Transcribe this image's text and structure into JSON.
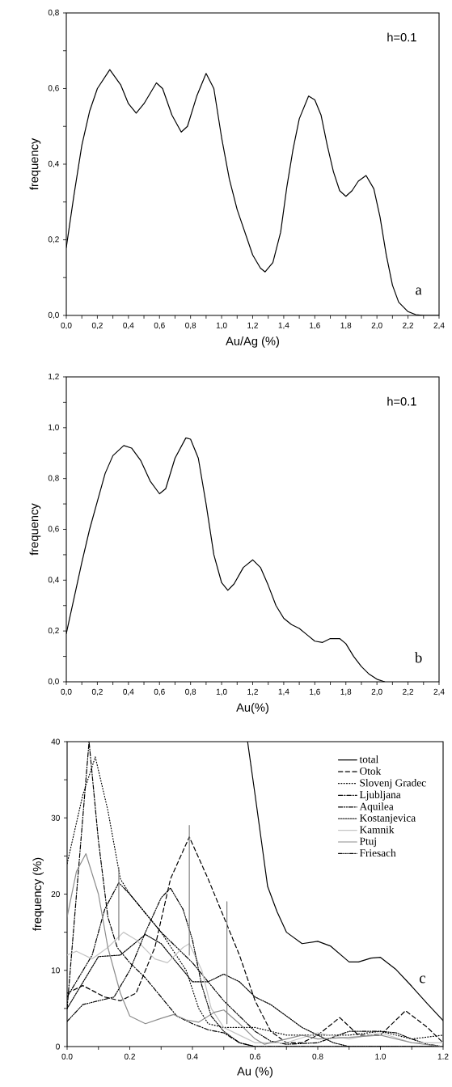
{
  "chart_data": [
    {
      "type": "line",
      "xlabel": "Au/Ag (%)",
      "ylabel": "frequency",
      "annotations": [
        "h=0.1",
        "a"
      ],
      "xlim": [
        0,
        2.4
      ],
      "ylim": [
        0,
        0.8
      ],
      "xticks": [
        {
          "value": 0,
          "label": "0,0"
        },
        {
          "value": 0.1,
          "label": null
        },
        {
          "value": 0.2,
          "label": "0,2"
        },
        {
          "value": 0.3,
          "label": null
        },
        {
          "value": 0.4,
          "label": "0,4"
        },
        {
          "value": 0.5,
          "label": null
        },
        {
          "value": 0.6,
          "label": "0,6"
        },
        {
          "value": 0.7,
          "label": null
        },
        {
          "value": 0.8,
          "label": "0,8"
        },
        {
          "value": 0.9,
          "label": null
        },
        {
          "value": 1.0,
          "label": "1,0"
        },
        {
          "value": 1.1,
          "label": null
        },
        {
          "value": 1.2,
          "label": "1,2"
        },
        {
          "value": 1.3,
          "label": null
        },
        {
          "value": 1.4,
          "label": "1,4"
        },
        {
          "value": 1.5,
          "label": null
        },
        {
          "value": 1.6,
          "label": "1,6"
        },
        {
          "value": 1.7,
          "label": null
        },
        {
          "value": 1.8,
          "label": "1,8"
        },
        {
          "value": 1.9,
          "label": null
        },
        {
          "value": 2.0,
          "label": "2,0"
        },
        {
          "value": 2.1,
          "label": null
        },
        {
          "value": 2.2,
          "label": "2,2"
        },
        {
          "value": 2.3,
          "label": null
        },
        {
          "value": 2.4,
          "label": "2,4"
        }
      ],
      "yticks": [
        {
          "value": 0,
          "label": "0,0"
        },
        {
          "value": 0.1,
          "label": null
        },
        {
          "value": 0.2,
          "label": "0,2"
        },
        {
          "value": 0.3,
          "label": null
        },
        {
          "value": 0.4,
          "label": "0,4"
        },
        {
          "value": 0.5,
          "label": null
        },
        {
          "value": 0.6,
          "label": "0,6"
        },
        {
          "value": 0.7,
          "label": null
        },
        {
          "value": 0.8,
          "label": "0,8"
        }
      ],
      "series": [
        {
          "color": "#000000",
          "line_style": "solid",
          "x": [
            0,
            0.05,
            0.1,
            0.15,
            0.2,
            0.28,
            0.35,
            0.4,
            0.45,
            0.5,
            0.58,
            0.62,
            0.68,
            0.74,
            0.78,
            0.84,
            0.9,
            0.95,
            1.0,
            1.05,
            1.1,
            1.15,
            1.2,
            1.25,
            1.28,
            1.33,
            1.38,
            1.42,
            1.46,
            1.5,
            1.56,
            1.6,
            1.64,
            1.68,
            1.72,
            1.76,
            1.8,
            1.84,
            1.88,
            1.93,
            1.98,
            2.02,
            2.06,
            2.1,
            2.14,
            2.2,
            2.25,
            2.3,
            2.4
          ],
          "values": [
            0.18,
            0.32,
            0.45,
            0.54,
            0.6,
            0.65,
            0.61,
            0.56,
            0.535,
            0.56,
            0.615,
            0.6,
            0.53,
            0.485,
            0.5,
            0.58,
            0.64,
            0.6,
            0.47,
            0.36,
            0.28,
            0.22,
            0.16,
            0.125,
            0.115,
            0.14,
            0.22,
            0.34,
            0.44,
            0.52,
            0.58,
            0.57,
            0.53,
            0.45,
            0.38,
            0.33,
            0.315,
            0.33,
            0.355,
            0.37,
            0.335,
            0.26,
            0.16,
            0.08,
            0.035,
            0.01,
            0.002,
            0,
            0
          ]
        }
      ]
    },
    {
      "type": "line",
      "xlabel": "Au(%)",
      "ylabel": "frequency",
      "annotations": [
        "h=0.1",
        "b"
      ],
      "xlim": [
        0,
        2.4
      ],
      "ylim": [
        0,
        1.2
      ],
      "xticks": [
        {
          "value": 0,
          "label": "0,0"
        },
        {
          "value": 0.1,
          "label": null
        },
        {
          "value": 0.2,
          "label": "0,2"
        },
        {
          "value": 0.3,
          "label": null
        },
        {
          "value": 0.4,
          "label": "0,4"
        },
        {
          "value": 0.5,
          "label": null
        },
        {
          "value": 0.6,
          "label": "0,6"
        },
        {
          "value": 0.7,
          "label": null
        },
        {
          "value": 0.8,
          "label": "0,8"
        },
        {
          "value": 0.9,
          "label": null
        },
        {
          "value": 1.0,
          "label": "1,0"
        },
        {
          "value": 1.1,
          "label": null
        },
        {
          "value": 1.2,
          "label": "1,2"
        },
        {
          "value": 1.3,
          "label": null
        },
        {
          "value": 1.4,
          "label": "1,4"
        },
        {
          "value": 1.5,
          "label": null
        },
        {
          "value": 1.6,
          "label": "1,6"
        },
        {
          "value": 1.7,
          "label": null
        },
        {
          "value": 1.8,
          "label": "1,8"
        },
        {
          "value": 1.9,
          "label": null
        },
        {
          "value": 2.0,
          "label": "2,0"
        },
        {
          "value": 2.1,
          "label": null
        },
        {
          "value": 2.2,
          "label": "2,2"
        },
        {
          "value": 2.3,
          "label": null
        },
        {
          "value": 2.4,
          "label": "2,4"
        }
      ],
      "yticks": [
        {
          "value": 0,
          "label": "0,0"
        },
        {
          "value": 0.1,
          "label": null
        },
        {
          "value": 0.2,
          "label": "0,2"
        },
        {
          "value": 0.3,
          "label": null
        },
        {
          "value": 0.4,
          "label": "0,4"
        },
        {
          "value": 0.5,
          "label": null
        },
        {
          "value": 0.6,
          "label": "0,6"
        },
        {
          "value": 0.7,
          "label": null
        },
        {
          "value": 0.8,
          "label": "0,8"
        },
        {
          "value": 0.9,
          "label": null
        },
        {
          "value": 1.0,
          "label": "1,0"
        },
        {
          "value": 1.1,
          "label": null
        },
        {
          "value": 1.2,
          "label": "1,2"
        }
      ],
      "series": [
        {
          "color": "#000000",
          "line_style": "solid",
          "x": [
            0,
            0.05,
            0.1,
            0.15,
            0.2,
            0.25,
            0.3,
            0.37,
            0.42,
            0.48,
            0.54,
            0.6,
            0.64,
            0.7,
            0.77,
            0.8,
            0.85,
            0.9,
            0.95,
            1.0,
            1.04,
            1.08,
            1.14,
            1.2,
            1.25,
            1.3,
            1.35,
            1.4,
            1.45,
            1.5,
            1.55,
            1.6,
            1.65,
            1.7,
            1.76,
            1.8,
            1.85,
            1.9,
            1.95,
            2.0,
            2.05
          ],
          "values": [
            0.19,
            0.33,
            0.47,
            0.6,
            0.71,
            0.82,
            0.89,
            0.93,
            0.92,
            0.87,
            0.79,
            0.74,
            0.76,
            0.88,
            0.96,
            0.955,
            0.88,
            0.7,
            0.5,
            0.39,
            0.36,
            0.385,
            0.45,
            0.48,
            0.45,
            0.38,
            0.3,
            0.25,
            0.225,
            0.21,
            0.185,
            0.16,
            0.155,
            0.17,
            0.17,
            0.15,
            0.1,
            0.06,
            0.03,
            0.01,
            0
          ]
        }
      ]
    },
    {
      "type": "line",
      "xlabel": "Au (%)",
      "ylabel": "frequency (%)",
      "annotations": [
        "c"
      ],
      "legend": "top right",
      "xlim": [
        0,
        1.2
      ],
      "ylim": [
        0,
        40
      ],
      "xticks": [
        {
          "value": 0,
          "label": "0.0"
        },
        {
          "value": 0.1,
          "label": null
        },
        {
          "value": 0.2,
          "label": "0.2"
        },
        {
          "value": 0.3,
          "label": null
        },
        {
          "value": 0.4,
          "label": "0.4"
        },
        {
          "value": 0.5,
          "label": null
        },
        {
          "value": 0.6,
          "label": "0.6"
        },
        {
          "value": 0.7,
          "label": null
        },
        {
          "value": 0.8,
          "label": "0.8"
        },
        {
          "value": 0.9,
          "label": null
        },
        {
          "value": 1.0,
          "label": "1.0"
        },
        {
          "value": 1.1,
          "label": null
        },
        {
          "value": 1.2,
          "label": "1.2"
        }
      ],
      "yticks": [
        0,
        {
          "value": 5,
          "label": null
        },
        10,
        {
          "value": 15,
          "label": null
        },
        20,
        {
          "value": 25,
          "label": null
        },
        30,
        {
          "value": 35,
          "label": null
        },
        40
      ],
      "series": [
        {
          "name": "total",
          "color": "#000000",
          "line_style": "solid",
          "x": [
            0.576,
            0.6,
            0.62,
            0.64,
            0.67,
            0.7,
            0.75,
            0.8,
            0.84,
            0.9,
            0.93,
            0.97,
            1.0,
            1.05,
            1.1,
            1.15,
            1.2
          ],
          "values": [
            40,
            33,
            27,
            21,
            17.7,
            15,
            13.5,
            13.8,
            13.2,
            11.1,
            11.1,
            11.6,
            11.7,
            10.1,
            7.9,
            5.6,
            3.4
          ]
        },
        {
          "name": "Otok",
          "color": "#000000",
          "line_style": "dashed",
          "x": [
            0,
            0.05,
            0.12,
            0.17,
            0.22,
            0.28,
            0.33,
            0.39,
            0.45,
            0.5,
            0.55,
            0.6,
            0.65,
            0.7,
            0.75,
            0.8,
            0.87,
            0.93,
            1.0,
            1.08,
            1.15,
            1.2
          ],
          "values": [
            7,
            8,
            6.5,
            6,
            7,
            13,
            22,
            27.5,
            22,
            17,
            12,
            6,
            2,
            0.5,
            0.5,
            1.5,
            3.8,
            1.5,
            1.5,
            4.7,
            2.5,
            0.5
          ]
        },
        {
          "name": "Slovenj Gradec",
          "color": "#000000",
          "line_style": "dotted",
          "x": [
            0,
            0.05,
            0.09,
            0.13,
            0.17,
            0.2,
            0.3,
            0.38,
            0.42,
            0.45,
            0.5,
            0.6,
            0.7,
            0.8,
            0.9,
            1.0,
            1.1,
            1.2
          ],
          "values": [
            24,
            33,
            38,
            31,
            22,
            20,
            15,
            10,
            5,
            3,
            2.5,
            2.5,
            1.5,
            1.5,
            1.5,
            2,
            1,
            1.5
          ]
        },
        {
          "name": "Ljubljana",
          "color": "#000000",
          "line_style": "dashdot",
          "x": [
            0,
            0.03,
            0.07,
            0.1,
            0.13,
            0.16,
            0.2,
            0.25,
            0.3,
            0.35,
            0.4,
            0.45,
            0.5,
            0.55,
            0.6,
            0.8,
            1.0,
            1.2
          ],
          "values": [
            5,
            20,
            40,
            27,
            17,
            13,
            11,
            9,
            6.5,
            4,
            3,
            2.2,
            1.8,
            0.5,
            0,
            0,
            0,
            0
          ]
        },
        {
          "name": "Aquilea",
          "color": "#000000",
          "line_style": "dashdotdot",
          "x": [
            0,
            0.08,
            0.12,
            0.165,
            0.2,
            0.25,
            0.3,
            0.35,
            0.4,
            0.45,
            0.5,
            0.55,
            0.6,
            0.65,
            0.7,
            0.8,
            0.9,
            1.0,
            1.05,
            1.1,
            1.15,
            1.2
          ],
          "values": [
            6.5,
            12,
            18,
            21.5,
            20,
            17.5,
            15,
            13,
            11,
            8.5,
            6,
            4,
            2,
            0.7,
            0.3,
            0.5,
            2,
            2,
            1.8,
            1,
            0.3,
            0
          ]
        },
        {
          "name": "Kostanjevica",
          "color": "#000000",
          "line_style": "densely dotted",
          "x": [
            0,
            0.1,
            0.17,
            0.25,
            0.3,
            0.35,
            0.4,
            0.45,
            0.5,
            0.55,
            0.6,
            0.65,
            0.7,
            0.75,
            0.8,
            0.85,
            0.9,
            1.2
          ],
          "values": [
            5,
            11.8,
            12,
            14.7,
            13.5,
            11,
            8.5,
            8.5,
            9.5,
            8.5,
            6.5,
            5.5,
            4,
            2.5,
            1.5,
            0.5,
            0,
            0
          ]
        },
        {
          "name": "Kamnik",
          "color": "#c4c4c4",
          "line_style": "solid",
          "x": [
            0,
            0.03,
            0.08,
            0.13,
            0.18,
            0.22,
            0.28,
            0.32,
            0.37,
            0.39,
            0.43,
            0.46,
            0.5,
            0.55,
            0.6,
            0.7,
            0.8,
            0.9,
            1.0,
            1.1,
            1.2
          ],
          "values": [
            12,
            12.5,
            11.5,
            13,
            15,
            14,
            11.5,
            11,
            13,
            13.5,
            10,
            5,
            2.5,
            1.5,
            0.5,
            0.5,
            1.8,
            1,
            1.8,
            0.5,
            0.5
          ]
        },
        {
          "name": "Ptuj",
          "color": "#8c8c8c",
          "line_style": "solid",
          "x": [
            0,
            0.03,
            0.06,
            0.1,
            0.13,
            0.17,
            0.2,
            0.25,
            0.3,
            0.34,
            0.38,
            0.42,
            0.47,
            0.5,
            0.55,
            0.6,
            0.63,
            0.7,
            0.75,
            0.8,
            0.9,
            1.0,
            1.1,
            1.2
          ],
          "values": [
            17,
            23,
            25.3,
            20,
            13,
            7,
            4,
            3,
            3.7,
            4.2,
            3.5,
            3.2,
            4.5,
            4.8,
            3,
            1,
            0.3,
            1,
            1.5,
            1,
            1.2,
            1.5,
            0.5,
            0
          ]
        },
        {
          "name": "Friesach",
          "color": "#000000",
          "line_style": "dashdotdotdot",
          "x": [
            0,
            0.05,
            0.1,
            0.15,
            0.2,
            0.25,
            0.3,
            0.33,
            0.37,
            0.4,
            0.43,
            0.46,
            0.5,
            0.55,
            0.6,
            0.8,
            1.0,
            1.2
          ],
          "values": [
            3.3,
            5.5,
            6,
            6.5,
            10,
            15,
            19.5,
            20.8,
            18,
            14,
            8,
            4,
            2,
            0.5,
            0,
            0,
            0,
            0
          ]
        },
        {
          "color": "#808080",
          "line_style": "solid",
          "x": [
            0.165,
            0.165
          ],
          "values": [
            14,
            23.5
          ]
        },
        {
          "color": "#808080",
          "line_style": "solid",
          "x": [
            0.39,
            0.39
          ],
          "values": [
            12,
            29
          ]
        },
        {
          "color": "#808080",
          "line_style": "solid",
          "x": [
            0.51,
            0.51
          ],
          "values": [
            3,
            19
          ]
        }
      ]
    }
  ]
}
